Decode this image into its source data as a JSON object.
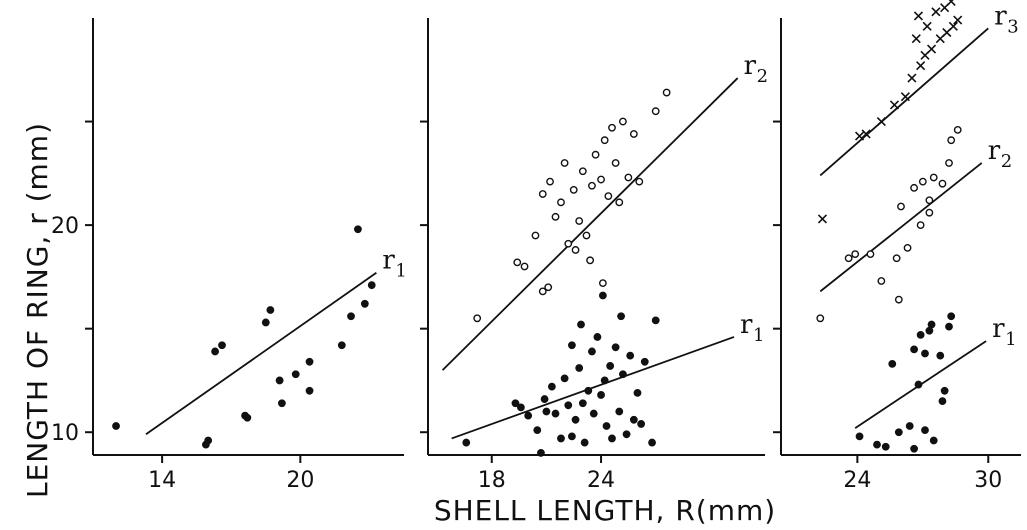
{
  "chart_data": [
    {
      "type": "scatter",
      "panel": "left",
      "xlim": [
        11,
        24.5
      ],
      "ylim": [
        8.9,
        30
      ],
      "xticks": [
        14,
        20
      ],
      "xtick_labels": [
        "14",
        "20"
      ],
      "yticks": [
        10,
        20
      ],
      "ytick_labels": [
        "10",
        "20"
      ],
      "series": [
        {
          "marker": "filled",
          "points": [
            [
              12.0,
              10.3
            ],
            [
              15.9,
              9.4
            ],
            [
              16.0,
              9.6
            ],
            [
              16.3,
              13.9
            ],
            [
              16.6,
              14.2
            ],
            [
              17.6,
              10.8
            ],
            [
              17.7,
              10.7
            ],
            [
              18.5,
              15.3
            ],
            [
              18.7,
              15.9
            ],
            [
              19.1,
              12.5
            ],
            [
              19.2,
              11.4
            ],
            [
              19.8,
              12.8
            ],
            [
              20.4,
              12.0
            ],
            [
              20.4,
              13.4
            ],
            [
              21.8,
              14.2
            ],
            [
              22.2,
              15.6
            ],
            [
              22.5,
              19.8
            ],
            [
              22.8,
              16.2
            ],
            [
              23.1,
              17.1
            ]
          ]
        }
      ],
      "lines": [
        {
          "label": "r",
          "sub": "1",
          "x": [
            13.3,
            23.3
          ],
          "y": [
            9.9,
            17.7
          ]
        }
      ]
    },
    {
      "type": "scatter",
      "panel": "middle",
      "xlim": [
        14.5,
        33
      ],
      "ylim": [
        8.9,
        30
      ],
      "xticks": [
        18,
        24
      ],
      "xtick_labels": [
        "18",
        "24"
      ],
      "series": [
        {
          "marker": "filled",
          "points": [
            [
              16.6,
              9.5
            ],
            [
              19.3,
              11.4
            ],
            [
              19.6,
              11.2
            ],
            [
              20.0,
              10.8
            ],
            [
              20.5,
              10.1
            ],
            [
              20.7,
              9.0
            ],
            [
              20.9,
              11.6
            ],
            [
              21.3,
              12.2
            ],
            [
              21.5,
              10.9
            ],
            [
              21.8,
              9.7
            ],
            [
              22.0,
              12.6
            ],
            [
              22.2,
              11.3
            ],
            [
              22.4,
              9.8
            ],
            [
              22.6,
              10.6
            ],
            [
              22.8,
              13.1
            ],
            [
              23.0,
              11.4
            ],
            [
              23.1,
              9.5
            ],
            [
              23.3,
              12.0
            ],
            [
              23.5,
              13.9
            ],
            [
              23.6,
              10.9
            ],
            [
              23.8,
              14.6
            ],
            [
              24.0,
              11.8
            ],
            [
              24.2,
              12.5
            ],
            [
              24.3,
              10.3
            ],
            [
              24.5,
              13.2
            ],
            [
              24.6,
              9.7
            ],
            [
              24.8,
              14.1
            ],
            [
              25.0,
              11.0
            ],
            [
              25.2,
              12.8
            ],
            [
              25.4,
              9.9
            ],
            [
              25.6,
              13.7
            ],
            [
              25.8,
              10.6
            ],
            [
              26.0,
              11.9
            ],
            [
              26.4,
              13.4
            ],
            [
              26.8,
              9.5
            ],
            [
              27.0,
              15.4
            ],
            [
              21.0,
              11.0
            ],
            [
              22.9,
              15.2
            ],
            [
              24.1,
              16.6
            ],
            [
              25.1,
              15.6
            ],
            [
              26.2,
              10.4
            ],
            [
              22.4,
              14.2
            ]
          ]
        },
        {
          "marker": "open",
          "points": [
            [
              17.2,
              15.5
            ],
            [
              19.4,
              18.2
            ],
            [
              19.8,
              18.0
            ],
            [
              20.4,
              19.5
            ],
            [
              20.8,
              21.5
            ],
            [
              21.2,
              22.1
            ],
            [
              21.5,
              20.4
            ],
            [
              21.8,
              21.1
            ],
            [
              22.0,
              23.0
            ],
            [
              22.2,
              19.1
            ],
            [
              22.5,
              21.7
            ],
            [
              22.8,
              20.2
            ],
            [
              23.0,
              22.6
            ],
            [
              23.2,
              19.5
            ],
            [
              23.5,
              21.9
            ],
            [
              23.7,
              23.4
            ],
            [
              24.0,
              22.2
            ],
            [
              24.2,
              24.1
            ],
            [
              24.4,
              21.4
            ],
            [
              24.6,
              24.7
            ],
            [
              24.8,
              23.0
            ],
            [
              25.0,
              21.1
            ],
            [
              25.2,
              25.0
            ],
            [
              25.5,
              22.3
            ],
            [
              25.8,
              24.4
            ],
            [
              26.1,
              22.1
            ],
            [
              27.0,
              25.5
            ],
            [
              27.6,
              26.4
            ],
            [
              20.8,
              16.8
            ],
            [
              21.1,
              17.0
            ],
            [
              23.4,
              18.3
            ],
            [
              24.1,
              17.2
            ],
            [
              22.6,
              18.8
            ]
          ]
        }
      ],
      "lines": [
        {
          "label": "r",
          "sub": "1",
          "x": [
            15.8,
            31.3
          ],
          "y": [
            9.7,
            14.6
          ]
        },
        {
          "label": "r",
          "sub": "2",
          "x": [
            15.3,
            31.5
          ],
          "y": [
            13.0,
            27.1
          ]
        }
      ]
    },
    {
      "type": "scatter",
      "panel": "right",
      "xlim": [
        20.5,
        31.5
      ],
      "ylim": [
        8.9,
        30
      ],
      "xticks": [
        24,
        30
      ],
      "xtick_labels": [
        "24",
        "30"
      ],
      "series": [
        {
          "marker": "filled",
          "points": [
            [
              24.1,
              9.8
            ],
            [
              24.9,
              9.4
            ],
            [
              25.3,
              9.3
            ],
            [
              25.9,
              10.0
            ],
            [
              26.4,
              10.3
            ],
            [
              26.6,
              9.2
            ],
            [
              27.1,
              10.1
            ],
            [
              27.5,
              9.6
            ],
            [
              27.9,
              11.5
            ],
            [
              28.0,
              12.0
            ],
            [
              27.1,
              13.8
            ],
            [
              26.6,
              14.0
            ],
            [
              26.9,
              14.7
            ],
            [
              27.3,
              14.9
            ],
            [
              27.8,
              13.7
            ],
            [
              28.2,
              15.1
            ],
            [
              28.3,
              15.6
            ],
            [
              27.4,
              15.2
            ],
            [
              25.6,
              13.3
            ],
            [
              26.8,
              12.3
            ]
          ]
        },
        {
          "marker": "open",
          "points": [
            [
              22.3,
              15.5
            ],
            [
              23.6,
              18.4
            ],
            [
              23.9,
              18.6
            ],
            [
              24.6,
              18.6
            ],
            [
              25.1,
              17.3
            ],
            [
              25.8,
              18.4
            ],
            [
              26.3,
              18.9
            ],
            [
              26.0,
              20.9
            ],
            [
              26.6,
              21.8
            ],
            [
              27.0,
              22.1
            ],
            [
              27.3,
              21.2
            ],
            [
              27.5,
              22.3
            ],
            [
              27.9,
              22.0
            ],
            [
              28.3,
              24.1
            ],
            [
              28.6,
              24.6
            ],
            [
              26.9,
              20.0
            ],
            [
              27.3,
              20.6
            ],
            [
              28.2,
              23.0
            ],
            [
              25.9,
              16.4
            ]
          ]
        },
        {
          "marker": "cross",
          "points": [
            [
              22.4,
              20.3
            ],
            [
              24.1,
              24.3
            ],
            [
              24.4,
              24.4
            ],
            [
              25.1,
              25.0
            ],
            [
              25.7,
              25.8
            ],
            [
              26.2,
              26.2
            ],
            [
              26.5,
              27.1
            ],
            [
              26.9,
              27.7
            ],
            [
              27.1,
              28.2
            ],
            [
              27.4,
              28.5
            ],
            [
              27.8,
              29.0
            ],
            [
              28.1,
              29.3
            ],
            [
              28.4,
              29.6
            ],
            [
              28.6,
              29.9
            ],
            [
              27.6,
              30.3
            ],
            [
              28.0,
              30.5
            ],
            [
              26.7,
              29.0
            ],
            [
              27.2,
              29.6
            ],
            [
              26.8,
              30.1
            ],
            [
              28.3,
              30.8
            ],
            [
              27.9,
              31.0
            ]
          ]
        }
      ],
      "lines": [
        {
          "label": "r",
          "sub": "1",
          "x": [
            23.9,
            29.9
          ],
          "y": [
            10.2,
            14.4
          ]
        },
        {
          "label": "r",
          "sub": "2",
          "x": [
            22.3,
            29.7
          ],
          "y": [
            16.8,
            23.0
          ]
        },
        {
          "label": "r",
          "sub": "3",
          "x": [
            22.3,
            30.0
          ],
          "y": [
            22.4,
            29.5
          ]
        }
      ]
    }
  ],
  "ylabel": "LENGTH OF RING, r (mm)",
  "xlabel": "SHELL LENGTH, R(mm)"
}
